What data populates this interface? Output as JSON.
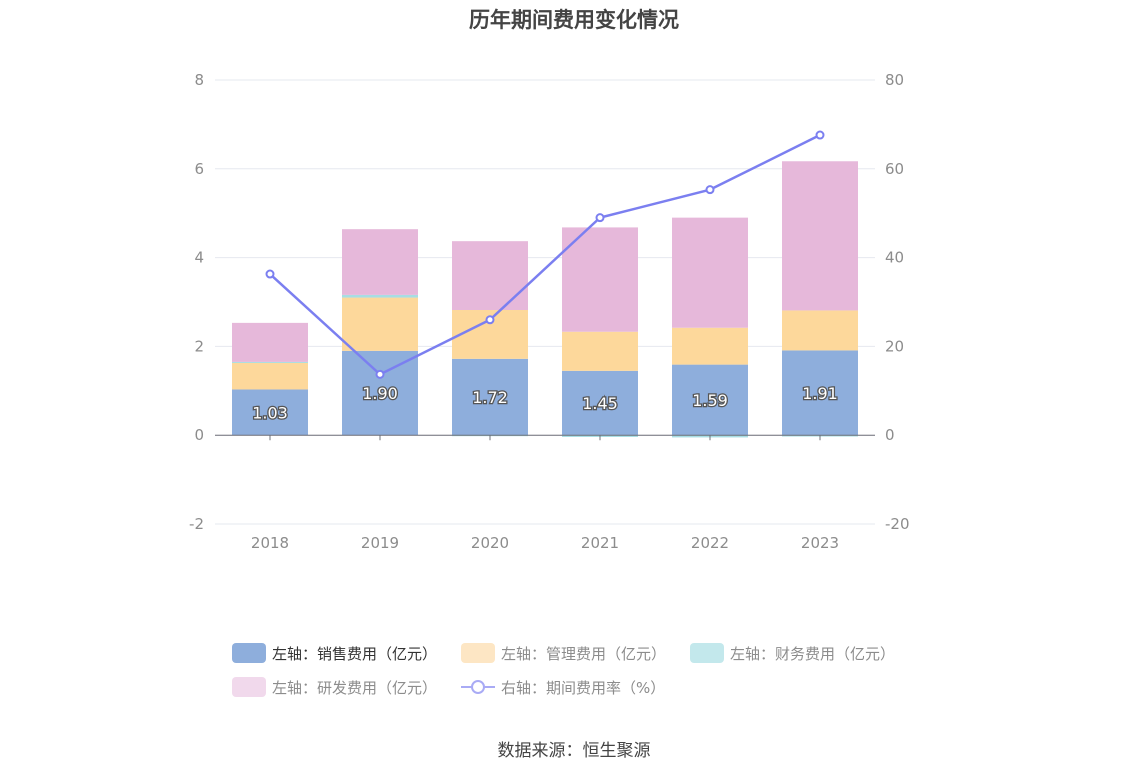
{
  "title": "历年期间费用变化情况",
  "source": "数据来源：恒生聚源",
  "chart_data": {
    "type": "bar",
    "stacked": true,
    "categories": [
      "2018",
      "2019",
      "2020",
      "2021",
      "2022",
      "2023"
    ],
    "left_axis": {
      "ticks": [
        "8",
        "6",
        "4",
        "2",
        "0",
        "-2"
      ],
      "min": -2,
      "max": 8
    },
    "right_axis": {
      "ticks": [
        "80",
        "60",
        "40",
        "20",
        "0",
        "-20"
      ],
      "min": -20,
      "max": 80
    },
    "series": [
      {
        "name": "左轴：销售费用（亿元）",
        "axis": "left",
        "type": "bar",
        "color": "#8eaedc",
        "values": [
          1.03,
          1.9,
          1.72,
          1.45,
          1.59,
          1.91
        ],
        "labels": [
          "1.03",
          "1.90",
          "1.72",
          "1.45",
          "1.59",
          "1.91"
        ]
      },
      {
        "name": "左轴：管理费用（亿元）",
        "axis": "left",
        "type": "bar",
        "color": "#fdd89b",
        "values": [
          0.6,
          1.2,
          1.1,
          0.88,
          0.83,
          0.9
        ]
      },
      {
        "name": "左轴：财务费用（亿元）",
        "axis": "left",
        "type": "bar",
        "color": "#a7dde3",
        "values": [
          0.02,
          0.06,
          -0.02,
          -0.04,
          -0.05,
          -0.03
        ]
      },
      {
        "name": "左轴：研发费用（亿元）",
        "axis": "left",
        "type": "bar",
        "color": "#e6b8da",
        "values": [
          0.88,
          1.48,
          1.55,
          2.35,
          2.48,
          3.36
        ]
      },
      {
        "name": "右轴：期间费用率（%）",
        "axis": "right",
        "type": "line",
        "color": "#7b7ff0",
        "values": [
          36.3,
          13.7,
          26.0,
          49.0,
          55.3,
          67.6
        ]
      }
    ],
    "grid": true,
    "legend_position": "bottom"
  },
  "legend": [
    {
      "label": "左轴：销售费用（亿元）",
      "color": "#8eaedc",
      "kind": "bar"
    },
    {
      "label": "左轴：管理费用（亿元）",
      "color": "#fde6c4",
      "kind": "bar"
    },
    {
      "label": "左轴：财务费用（亿元）",
      "color": "#c3e8ec",
      "kind": "bar"
    },
    {
      "label": "左轴：研发费用（亿元）",
      "color": "#f1d9ec",
      "kind": "bar"
    },
    {
      "label": "右轴：期间费用率（%）",
      "color": "#a9abf5",
      "kind": "line"
    }
  ]
}
